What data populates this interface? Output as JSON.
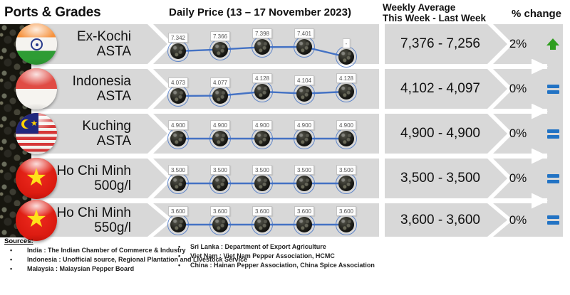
{
  "header": {
    "ports_grades": "Ports & Grades",
    "daily_price": "Daily Price (13 – 17 November 2023)",
    "weekly_line1": "Weekly Average",
    "weekly_line2": "This Week - Last Week",
    "pct_change": "% change"
  },
  "colors": {
    "band_gray": "#d8d8d8",
    "line_blue": "#4472c4",
    "up_green": "#2f9e1f",
    "flat_blue": "#2273c4"
  },
  "chart_data": {
    "type": "line",
    "title": "Daily Price (13 – 17 November 2023)",
    "points_per_series": 5,
    "series": [
      {
        "name": "Ex-Kochi ASTA",
        "values": [
          7342,
          7366,
          7398,
          7401,
          null
        ],
        "point_labels": [
          "7.342",
          "7.366",
          "7.398",
          "7.401",
          "-"
        ]
      },
      {
        "name": "Indonesia ASTA",
        "values": [
          4073,
          4077,
          4128,
          4104,
          4128
        ],
        "point_labels": [
          "4.073",
          "4.077",
          "4.128",
          "4.104",
          "4.128"
        ]
      },
      {
        "name": "Kuching ASTA",
        "values": [
          4900,
          4900,
          4900,
          4900,
          4900
        ],
        "point_labels": [
          "4.900",
          "4.900",
          "4.900",
          "4.900",
          "4.900"
        ]
      },
      {
        "name": "Ho Chi Minh 500g/l",
        "values": [
          3500,
          3500,
          3500,
          3500,
          3500
        ],
        "point_labels": [
          "3.500",
          "3.500",
          "3.500",
          "3.500",
          "3.500"
        ]
      },
      {
        "name": "Ho Chi Minh 550g/l",
        "values": [
          3600,
          3600,
          3600,
          3600,
          3600
        ],
        "point_labels": [
          "3.600",
          "3.600",
          "3.600",
          "3.600",
          "3.600"
        ]
      }
    ]
  },
  "rows": [
    {
      "flag": "india",
      "port": "Ex-Kochi",
      "grade": "ASTA",
      "weekly": "7,376 - 7,256",
      "change": "2%",
      "trend": "up"
    },
    {
      "flag": "indonesia",
      "port": "Indonesia",
      "grade": "ASTA",
      "weekly": "4,102 - 4,097",
      "change": "0%",
      "trend": "flat"
    },
    {
      "flag": "malaysia",
      "port": "Kuching",
      "grade": "ASTA",
      "weekly": "4,900 - 4,900",
      "change": "0%",
      "trend": "flat"
    },
    {
      "flag": "vietnam",
      "port": "Ho Chi Minh",
      "grade": "500g/l",
      "weekly": "3,500 - 3,500",
      "change": "0%",
      "trend": "flat"
    },
    {
      "flag": "vietnam",
      "port": "Ho Chi Minh",
      "grade": "550g/l",
      "weekly": "3,600 - 3,600",
      "change": "0%",
      "trend": "flat"
    }
  ],
  "sources": {
    "title": "Sources:",
    "left": [
      "India : The Indian Chamber of Commerce & Industry",
      "Indonesia : Unofficial source, Regional Plantation and Livestock Service",
      "Malaysia : Malaysian Pepper Board"
    ],
    "right": [
      "Sri Lanka : Department of Export Agriculture",
      "Viet Nam : Viet Nam Pepper Association, HCMC",
      "China : Hainan Pepper Association, China Spice Association"
    ]
  }
}
